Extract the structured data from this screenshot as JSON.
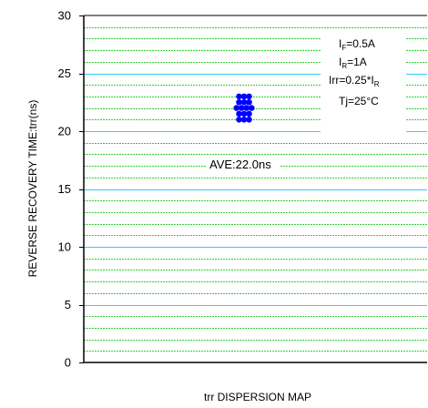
{
  "chart_data": {
    "type": "scatter",
    "ylabel": "REVERSE RECOVERY TIME:trr(ns)",
    "xlabel": "trr DISPERSION MAP",
    "ylim": [
      0,
      30
    ],
    "yticks": [
      0,
      5,
      10,
      15,
      20,
      25,
      30
    ],
    "minor_grid_step": 1,
    "grid": true,
    "colors": {
      "major_grid": "#33ccff",
      "minor_grid": "#33cc33",
      "points": "#0000ff"
    },
    "points": [
      {
        "y": 23.0,
        "count": 3
      },
      {
        "y": 22.5,
        "count": 3
      },
      {
        "y": 22.0,
        "count": 4
      },
      {
        "y": 21.5,
        "count": 3
      },
      {
        "y": 21.0,
        "count": 3
      }
    ],
    "annotation": "AVE:22.0ns",
    "conditions": {
      "if": {
        "main": "I",
        "sub": "F",
        "tail": "=0.5A"
      },
      "ir": {
        "main": "I",
        "sub": "R",
        "tail": "=1A"
      },
      "irr": {
        "main": "Irr=0.25*I",
        "sub": "R",
        "tail": ""
      },
      "tj": "Tj=25°C"
    }
  }
}
